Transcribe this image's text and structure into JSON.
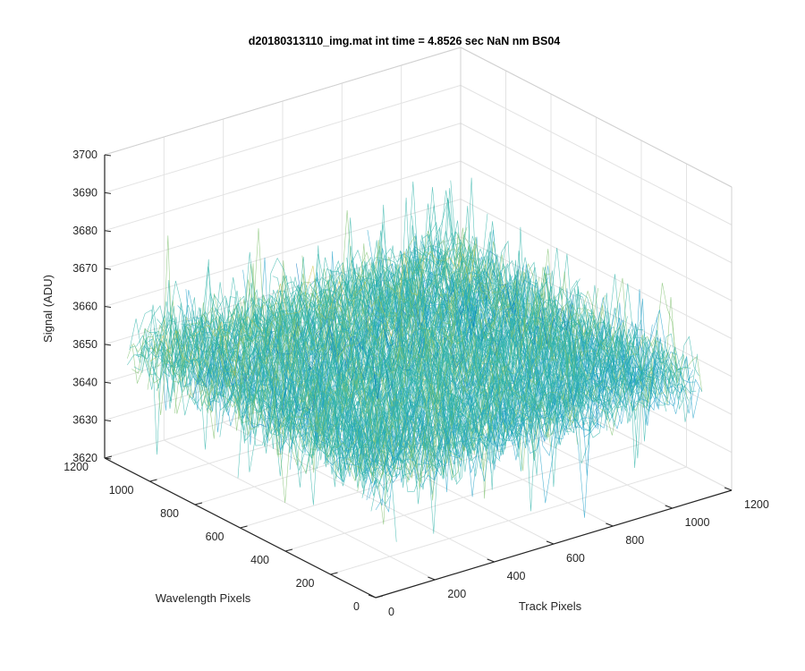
{
  "chart_data": {
    "type": "surface",
    "title": "d20180313110_img.mat int time = 4.8526 sec  NaN nm BS04",
    "xlabel": "Track Pixels",
    "ylabel": "Wavelength Pixels",
    "zlabel": "Signal (ADU)",
    "xlim": [
      0,
      1200
    ],
    "ylim": [
      0,
      1200
    ],
    "zlim": [
      3620,
      3700
    ],
    "x_ticks": [
      "0",
      "200",
      "400",
      "600",
      "800",
      "1000",
      "1200"
    ],
    "y_ticks": [
      "0",
      "200",
      "400",
      "600",
      "800",
      "1000",
      "1200"
    ],
    "z_ticks": [
      "3620",
      "3630",
      "3640",
      "3650",
      "3660",
      "3670",
      "3680",
      "3690",
      "3700"
    ],
    "data_extent": {
      "x": [
        0,
        1100
      ],
      "y": [
        0,
        1100
      ]
    },
    "signal_mean": 3652,
    "signal_noise_range": [
      3625,
      3690
    ],
    "colormap": [
      "#0072bd",
      "#1fa0c8",
      "#2fb3a8",
      "#7cbf6b",
      "#c9c346",
      "#f5d43a"
    ],
    "grid": true
  }
}
